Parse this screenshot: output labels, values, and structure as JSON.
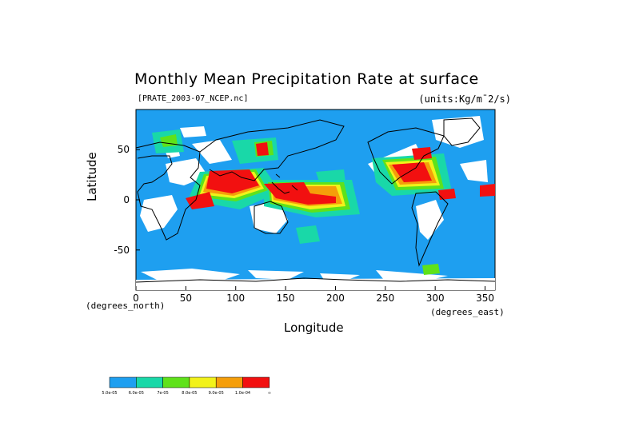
{
  "chart_data": {
    "type": "heatmap",
    "title": "Monthly Mean Precipitation Rate at surface",
    "file_label": "[PRATE_2003-07_NCEP.nc]",
    "units_label": "(units:Kg/m¯2/s)",
    "xlabel": "Longitude",
    "ylabel": "Latitude",
    "x_unit": "(degrees_east)",
    "y_unit": "(degrees_north)",
    "xlim": [
      0,
      360
    ],
    "ylim": [
      -90,
      90
    ],
    "x_ticks": [
      0,
      50,
      100,
      150,
      200,
      250,
      300,
      350
    ],
    "y_ticks": [
      50,
      0,
      -50
    ],
    "color_levels": [
      {
        "label": "5.0e-05",
        "color": "#1e9ff0"
      },
      {
        "label": "6.0e-05",
        "color": "#19d8a8"
      },
      {
        "label": "7e-05",
        "color": "#5fe21a"
      },
      {
        "label": "8.0e-05",
        "color": "#f2f21a"
      },
      {
        "label": "9.0e-05",
        "color": "#f59e0a"
      },
      {
        "label": "1.0e-04",
        "color": "#f21010"
      },
      {
        "label": "∞",
        "color": "#ffffff"
      }
    ],
    "grid": false
  }
}
